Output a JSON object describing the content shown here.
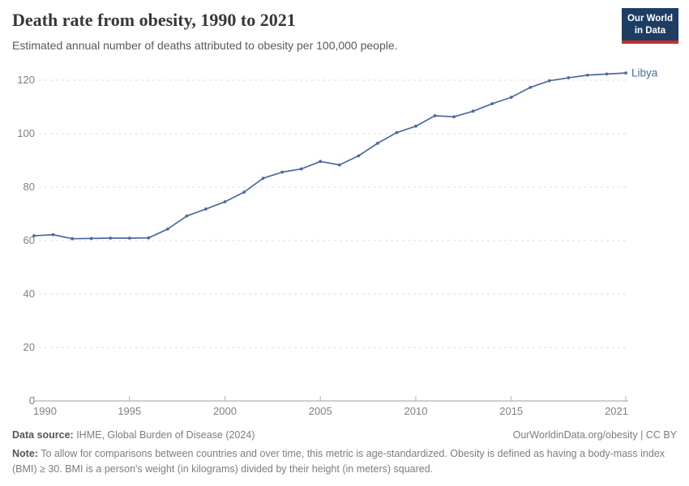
{
  "header": {
    "title": "Death rate from obesity, 1990 to 2021",
    "subtitle": "Estimated annual number of deaths attributed to obesity per 100,000 people.",
    "logo_line1": "Our World",
    "logo_line2": "in Data"
  },
  "chart_data": {
    "type": "line",
    "title": "Death rate from obesity, 1990 to 2021",
    "xlabel": "",
    "ylabel": "",
    "x": [
      1990,
      1991,
      1992,
      1993,
      1994,
      1995,
      1996,
      1997,
      1998,
      1999,
      2000,
      2001,
      2002,
      2003,
      2004,
      2005,
      2006,
      2007,
      2008,
      2009,
      2010,
      2011,
      2012,
      2013,
      2014,
      2015,
      2016,
      2017,
      2018,
      2019,
      2020,
      2021
    ],
    "series": [
      {
        "name": "Libya",
        "color": "#4C6A9C",
        "values": [
          61.8,
          62.2,
          60.7,
          60.8,
          60.9,
          60.9,
          61.0,
          64.3,
          69.2,
          71.8,
          74.5,
          78.1,
          83.3,
          85.6,
          86.8,
          89.6,
          88.3,
          91.7,
          96.4,
          100.4,
          102.8,
          106.7,
          106.3,
          108.4,
          111.2,
          113.6,
          117.3,
          119.8,
          120.9,
          121.9,
          122.3,
          122.7
        ]
      }
    ],
    "x_ticks": [
      1990,
      1995,
      2000,
      2005,
      2010,
      2015,
      2021
    ],
    "y_ticks": [
      0,
      20,
      40,
      60,
      80,
      100,
      120
    ],
    "xlim": [
      1990,
      2021
    ],
    "ylim": [
      0,
      120
    ],
    "grid": "horizontal-dashed",
    "legend": "line-end-label"
  },
  "footer": {
    "source_label": "Data source:",
    "source_text": " IHME, Global Burden of Disease (2024)",
    "link": "OurWorldinData.org/obesity | CC BY",
    "note_label": "Note:",
    "note_text": " To allow for comparisons between countries and over time, this metric is age-standardized. Obesity is defined as having a body-mass index (BMI) ≥ 30. BMI is a person's weight (in kilograms) divided by their height (in meters) squared."
  },
  "colors": {
    "line": "#4C6A9C",
    "logo_background": "#1d3d63",
    "logo_accent_red": "#c5302b",
    "grid": "#dcdcdc",
    "axis": "#9e9e9e",
    "tick_label": "#808080"
  }
}
